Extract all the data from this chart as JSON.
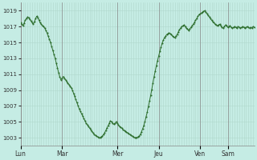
{
  "background_color": "#c5ece4",
  "grid_color": "#b0d8cc",
  "line_color": "#2d6e2d",
  "marker_color": "#2d6e2d",
  "ylim": [
    1002.0,
    1020.0
  ],
  "yticks": [
    1003,
    1005,
    1007,
    1009,
    1011,
    1013,
    1015,
    1017,
    1019
  ],
  "day_labels": [
    "Lun",
    "Mar",
    "Mer",
    "Jeu",
    "Ven",
    "Sam"
  ],
  "day_x_positions": [
    0,
    36,
    84,
    120,
    156,
    180
  ],
  "total_points": 204,
  "pressure_values": [
    1017.5,
    1017.3,
    1017.1,
    1017.4,
    1017.8,
    1018.0,
    1018.2,
    1018.1,
    1017.9,
    1017.7,
    1017.5,
    1017.3,
    1017.6,
    1018.0,
    1018.3,
    1018.1,
    1017.8,
    1017.5,
    1017.3,
    1017.1,
    1017.0,
    1016.8,
    1016.5,
    1016.2,
    1015.8,
    1015.4,
    1015.0,
    1014.5,
    1014.0,
    1013.5,
    1013.0,
    1012.4,
    1011.8,
    1011.2,
    1010.7,
    1010.3,
    1010.5,
    1010.7,
    1010.5,
    1010.3,
    1010.1,
    1009.9,
    1009.7,
    1009.5,
    1009.3,
    1009.0,
    1008.6,
    1008.2,
    1007.8,
    1007.4,
    1007.0,
    1006.6,
    1006.3,
    1006.0,
    1005.7,
    1005.4,
    1005.1,
    1004.8,
    1004.6,
    1004.4,
    1004.2,
    1004.0,
    1003.8,
    1003.6,
    1003.4,
    1003.3,
    1003.2,
    1003.1,
    1003.0,
    1003.0,
    1003.1,
    1003.2,
    1003.4,
    1003.6,
    1003.9,
    1004.2,
    1004.5,
    1004.8,
    1005.1,
    1005.0,
    1004.8,
    1004.7,
    1004.8,
    1005.0,
    1004.8,
    1004.6,
    1004.4,
    1004.3,
    1004.2,
    1004.0,
    1003.9,
    1003.8,
    1003.7,
    1003.6,
    1003.5,
    1003.4,
    1003.3,
    1003.2,
    1003.1,
    1003.0,
    1003.0,
    1003.0,
    1003.1,
    1003.2,
    1003.4,
    1003.7,
    1004.1,
    1004.5,
    1005.0,
    1005.6,
    1006.2,
    1006.9,
    1007.6,
    1008.3,
    1009.1,
    1009.9,
    1010.7,
    1011.4,
    1012.1,
    1012.7,
    1013.3,
    1013.9,
    1014.4,
    1014.9,
    1015.3,
    1015.6,
    1015.8,
    1016.0,
    1016.1,
    1016.2,
    1016.1,
    1016.0,
    1015.8,
    1015.7,
    1015.6,
    1015.8,
    1016.0,
    1016.3,
    1016.6,
    1016.8,
    1017.0,
    1017.1,
    1017.2,
    1017.0,
    1016.8,
    1016.7,
    1016.5,
    1016.7,
    1016.9,
    1017.1,
    1017.3,
    1017.5,
    1017.8,
    1018.0,
    1018.3,
    1018.5,
    1018.6,
    1018.7,
    1018.8,
    1018.9,
    1019.0,
    1018.8,
    1018.6,
    1018.4,
    1018.2,
    1018.0,
    1017.8,
    1017.6,
    1017.5,
    1017.3,
    1017.2,
    1017.1,
    1017.2,
    1017.3,
    1017.1,
    1016.9,
    1016.8,
    1017.0,
    1017.2,
    1017.1,
    1016.9,
    1017.0,
    1017.1,
    1016.9,
    1016.8,
    1016.9,
    1017.0,
    1016.9,
    1016.8,
    1017.0,
    1016.9,
    1016.8,
    1016.9,
    1017.0,
    1016.9,
    1016.8,
    1016.9,
    1017.0,
    1016.9,
    1016.8,
    1016.9,
    1016.8,
    1017.0,
    1016.9
  ]
}
